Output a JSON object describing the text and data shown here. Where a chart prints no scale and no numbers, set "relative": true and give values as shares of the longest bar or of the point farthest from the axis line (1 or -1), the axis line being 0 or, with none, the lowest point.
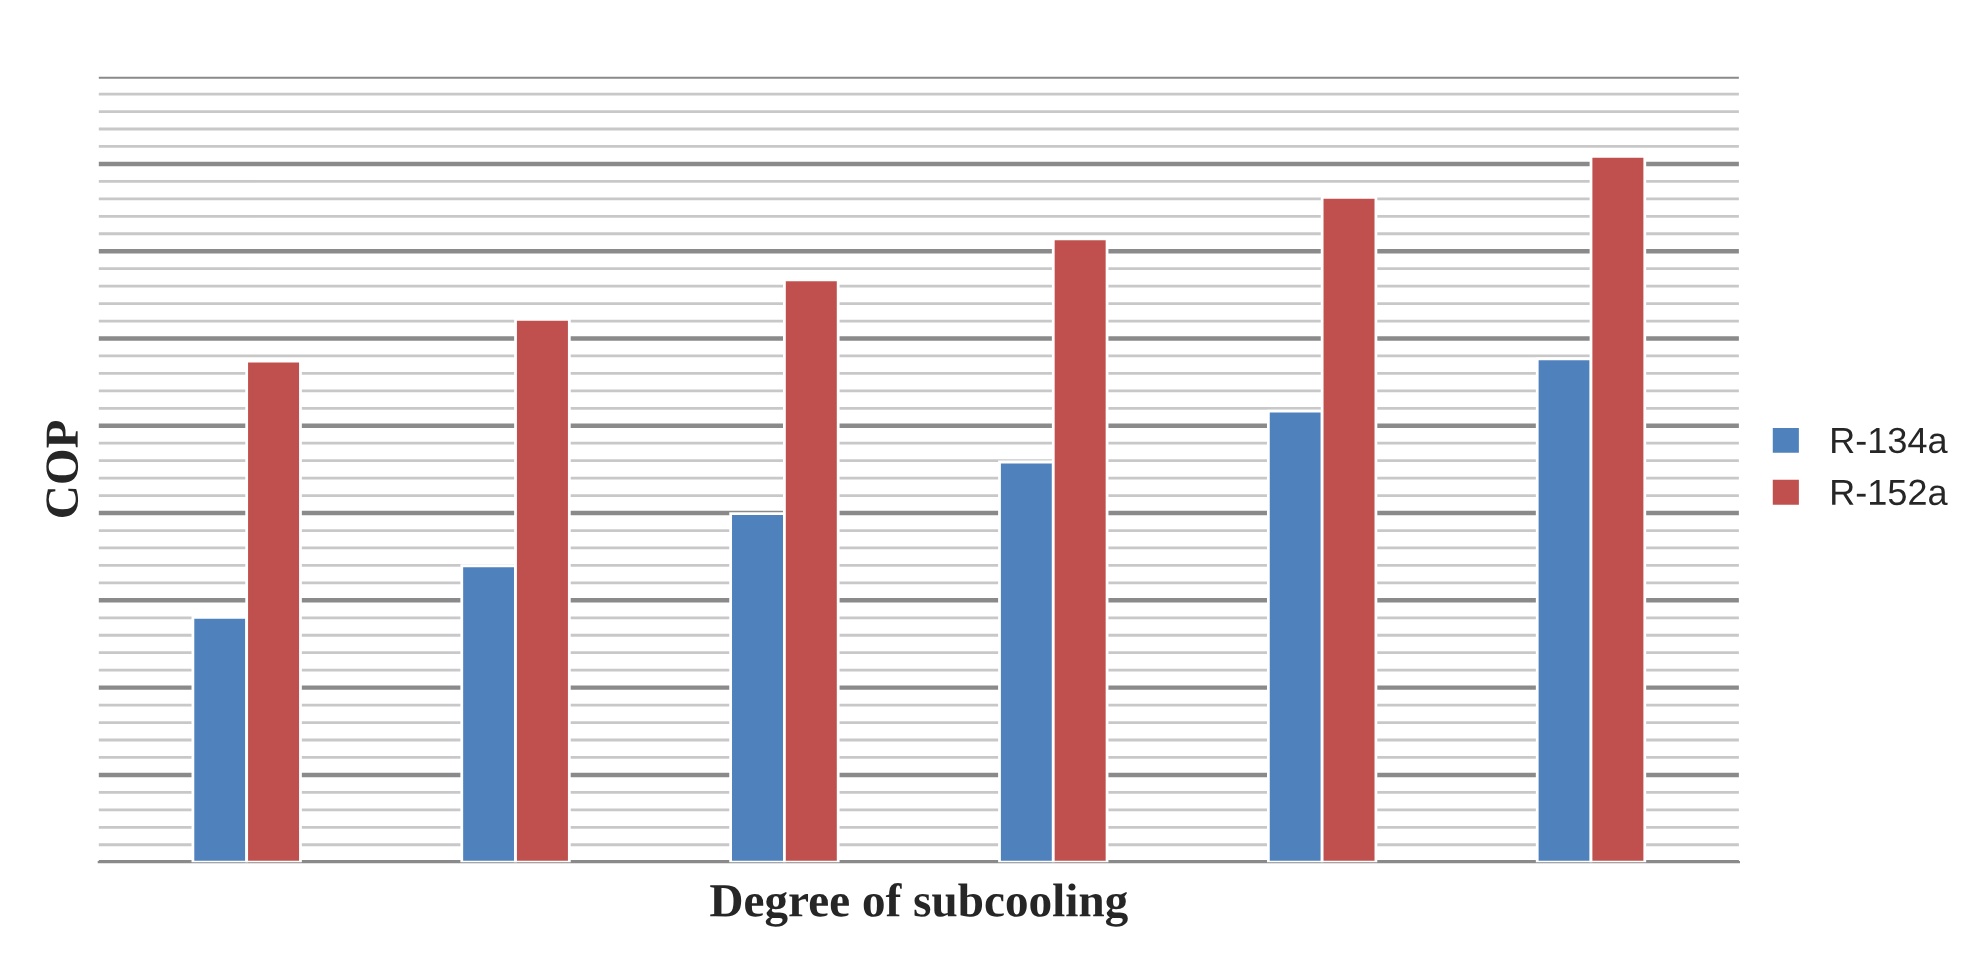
{
  "chart_data": {
    "type": "bar",
    "relative": true,
    "xlabel": "Degree of subcooling",
    "ylabel": "COP",
    "categories": [
      null,
      null,
      null,
      null,
      null,
      null
    ],
    "series": [
      {
        "name": "R-134a",
        "color": "#4f81bd",
        "values": [
          0.347,
          0.42,
          0.494,
          0.567,
          0.639,
          0.713
        ]
      },
      {
        "name": "R-152a",
        "color": "#c0504d",
        "values": [
          0.71,
          0.769,
          0.825,
          0.883,
          0.942,
          1
        ]
      }
    ],
    "grid": "y",
    "legend": "right"
  }
}
